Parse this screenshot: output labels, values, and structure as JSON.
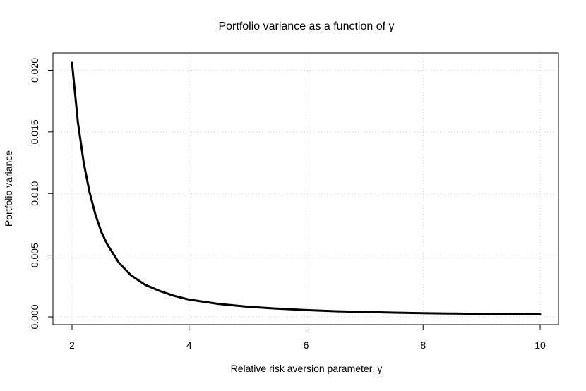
{
  "chart_data": {
    "type": "line",
    "title": "Portfolio variance as a function of γ",
    "xlabel": "Relative risk aversion parameter, γ",
    "ylabel": "Portfolio variance",
    "xlim": [
      2,
      10
    ],
    "ylim": [
      0,
      0.0206
    ],
    "grid": true,
    "x_ticks": [
      2,
      4,
      6,
      8,
      10
    ],
    "x_tick_labels": [
      "2",
      "4",
      "6",
      "8",
      "10"
    ],
    "y_ticks": [
      0,
      0.005,
      0.01,
      0.015,
      0.02
    ],
    "y_tick_labels": [
      "0.000",
      "0.005",
      "0.010",
      "0.015",
      "0.020"
    ],
    "series": [
      {
        "color": "#000000",
        "x": [
          2.0,
          2.1,
          2.2,
          2.3,
          2.4,
          2.5,
          2.6,
          2.8,
          3.0,
          3.25,
          3.5,
          3.75,
          4.0,
          4.5,
          5.0,
          5.5,
          6.0,
          6.5,
          7.0,
          7.5,
          8.0,
          8.5,
          9.0,
          9.5,
          10.0
        ],
        "y": [
          0.0206,
          0.0158,
          0.0125,
          0.0101,
          0.0083,
          0.0069,
          0.0059,
          0.0044,
          0.0034,
          0.0026,
          0.0021,
          0.0017,
          0.0014,
          0.00105,
          0.00082,
          0.00067,
          0.00055,
          0.00046,
          0.0004,
          0.00034,
          0.0003,
          0.00027,
          0.00024,
          0.00022,
          0.0002
        ]
      }
    ]
  }
}
